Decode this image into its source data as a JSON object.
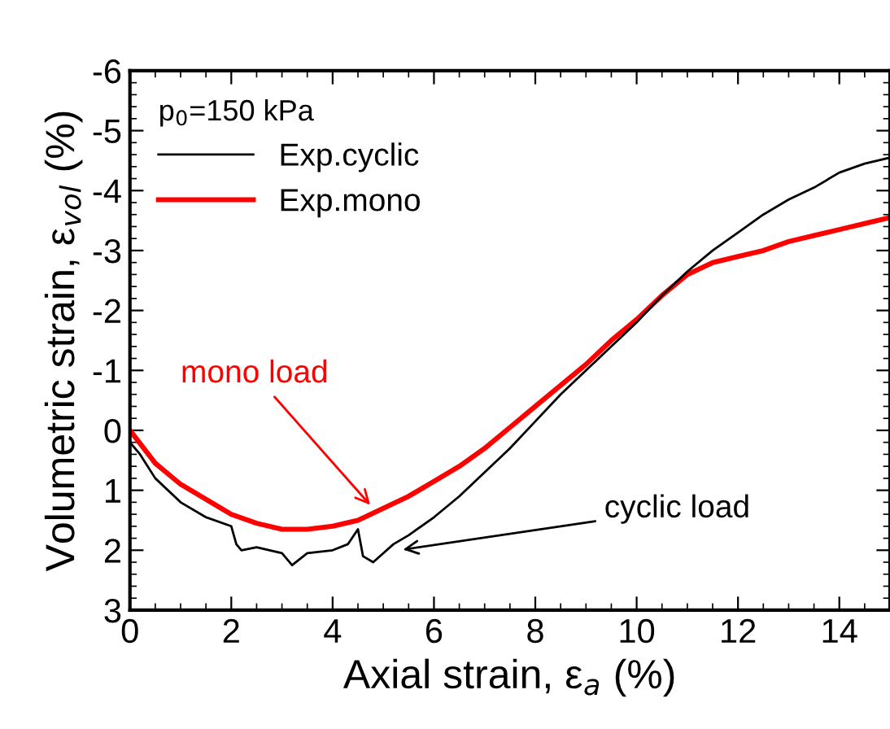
{
  "chart_data": {
    "type": "line",
    "xlabel": "Axial strain, ε$_{a}$ (%)",
    "ylabel": "Volumetric strain, ε$_{vol}$ (%)",
    "legend_title": "p$_{0}$=150 kPa",
    "legend": "top left",
    "grid": false,
    "marker": "none",
    "line_style": "solid",
    "xlim": [
      0,
      15
    ],
    "xticks": [
      0,
      2,
      4,
      6,
      8,
      10,
      12,
      14
    ],
    "ylim": [
      3,
      -6
    ],
    "yticks": [
      {
        "value": 3,
        "label": "3"
      },
      {
        "value": 2,
        "label": "2"
      },
      {
        "value": 1,
        "label": "1"
      },
      {
        "value": 0,
        "label": "0"
      },
      {
        "value": -1,
        "label": "-1"
      },
      {
        "value": -2,
        "label": "-2"
      },
      {
        "value": -3,
        "label": "-3"
      },
      {
        "value": -4,
        "label": "-4"
      },
      {
        "value": -5,
        "label": "-5"
      },
      {
        "value": -6,
        "label": "-6"
      }
    ],
    "series": [
      {
        "name": "Exp.cyclic",
        "color": "#000000",
        "x": [
          0,
          0.2,
          0.5,
          1,
          1.5,
          2,
          2.1,
          2.2,
          2.5,
          3,
          3.2,
          3.5,
          4,
          4.3,
          4.5,
          4.6,
          4.8,
          5,
          5.2,
          5.5,
          6,
          6.5,
          7,
          7.5,
          8,
          8.5,
          9,
          9.5,
          10,
          10.5,
          11,
          11.5,
          12,
          12.5,
          13,
          13.5,
          14,
          14.5,
          15
        ],
        "values": [
          0.2,
          0.4,
          0.8,
          1.2,
          1.45,
          1.6,
          1.9,
          2.0,
          1.95,
          2.05,
          2.25,
          2.05,
          2.0,
          1.9,
          1.65,
          2.1,
          2.2,
          2.05,
          1.9,
          1.75,
          1.45,
          1.1,
          0.7,
          0.3,
          -0.15,
          -0.6,
          -1.0,
          -1.4,
          -1.8,
          -2.25,
          -2.65,
          -3.0,
          -3.3,
          -3.6,
          -3.85,
          -4.05,
          -4.3,
          -4.45,
          -4.55
        ]
      },
      {
        "name": "Exp.mono",
        "color": "#ff0000",
        "x": [
          0,
          0.5,
          1,
          1.5,
          2,
          2.5,
          3,
          3.5,
          4,
          4.5,
          5,
          5.5,
          6,
          6.5,
          7,
          7.5,
          8,
          8.5,
          9,
          9.5,
          10,
          10.5,
          11,
          11.5,
          12,
          12.5,
          13,
          13.5,
          14,
          14.5,
          15
        ],
        "values": [
          0,
          0.55,
          0.9,
          1.15,
          1.4,
          1.55,
          1.65,
          1.65,
          1.6,
          1.5,
          1.3,
          1.1,
          0.85,
          0.6,
          0.3,
          -0.05,
          -0.4,
          -0.75,
          -1.1,
          -1.5,
          -1.85,
          -2.25,
          -2.6,
          -2.8,
          -2.9,
          -3.0,
          -3.15,
          -3.25,
          -3.35,
          -3.45,
          -3.55
        ]
      }
    ],
    "annotations": [
      {
        "text": "mono load",
        "x": 4.8,
        "y": 1.3
      },
      {
        "text": "cyclic load",
        "x": 5.3,
        "y": 2.0
      }
    ]
  }
}
